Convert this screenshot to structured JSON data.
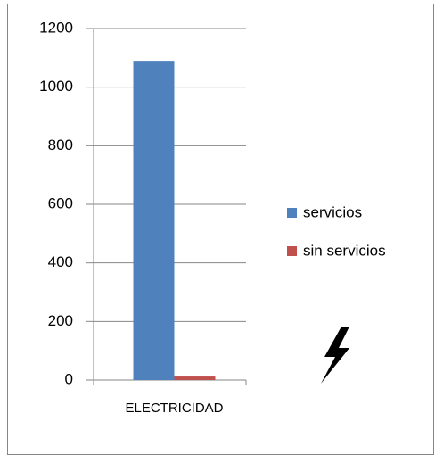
{
  "chart_data": {
    "type": "bar",
    "categories": [
      "ELECTRICIDAD"
    ],
    "series": [
      {
        "name": "servicios",
        "color": "#4f81bd",
        "values": [
          1090
        ]
      },
      {
        "name": "sin servicios",
        "color": "#c0504d",
        "values": [
          12
        ]
      }
    ],
    "ylim": [
      0,
      1200
    ],
    "yticks": [
      0,
      200,
      400,
      600,
      800,
      1000,
      1200
    ],
    "grid": true,
    "legend": "right"
  }
}
